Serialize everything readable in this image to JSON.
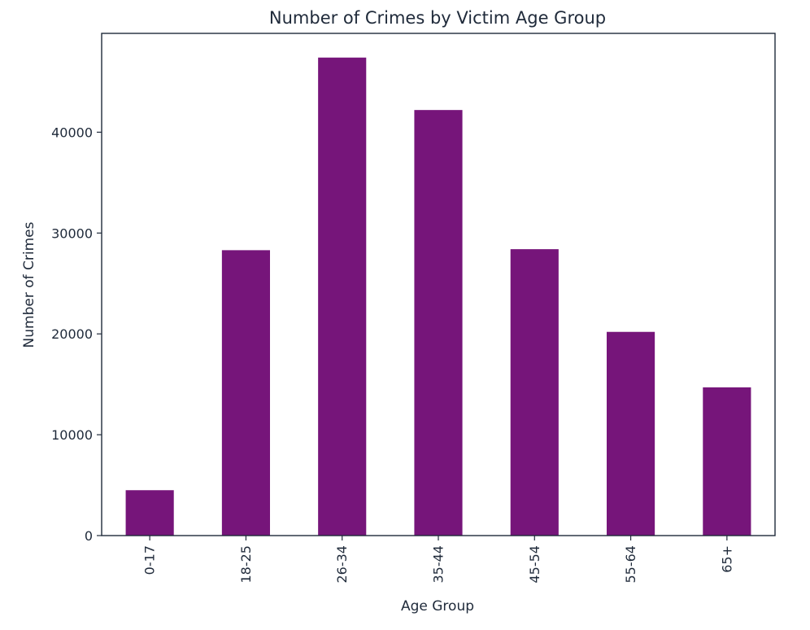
{
  "chart_data": {
    "type": "bar",
    "title": "Number of Crimes by Victim Age Group",
    "xlabel": "Age Group",
    "ylabel": "Number of Crimes",
    "categories": [
      "0-17",
      "18-25",
      "26-34",
      "35-44",
      "45-54",
      "55-64",
      "65+"
    ],
    "values": [
      4500,
      28300,
      47400,
      42200,
      28400,
      20200,
      14700
    ],
    "ylim": [
      0,
      49800
    ],
    "yticks": [
      0,
      10000,
      20000,
      30000,
      40000
    ],
    "grid": false,
    "legend": "none",
    "bar_color": "#76157a"
  }
}
